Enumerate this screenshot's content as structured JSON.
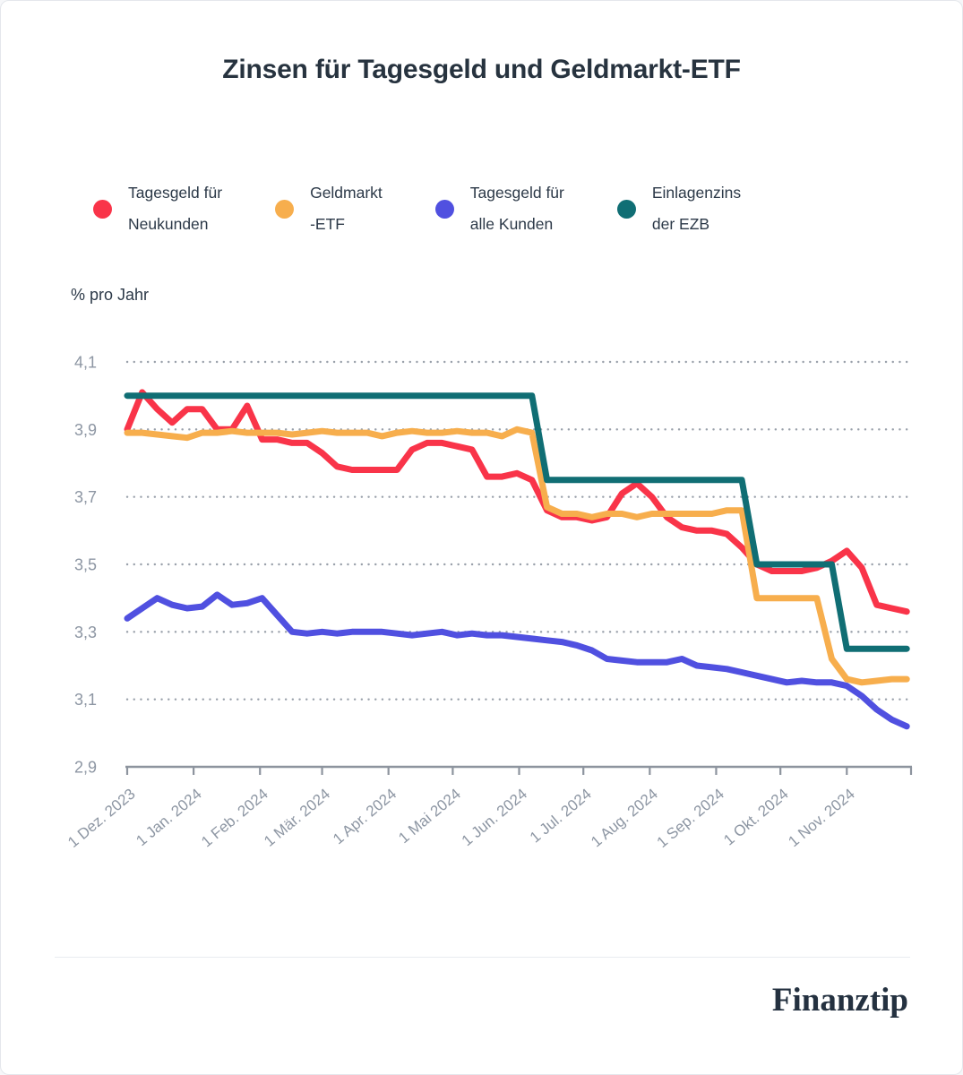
{
  "card": {
    "title": "Zinsen für Tagesgeld und Geldmarkt-ETF"
  },
  "y_axis_title": "% pro Jahr",
  "footer": {
    "brand": "Finanztip"
  },
  "colors": {
    "red": "#F93449",
    "orange": "#F7AE4D",
    "blue": "#5050E0",
    "teal": "#106E74",
    "title_text": "#27333F",
    "legend_text": "#2C3948",
    "axis_text": "#8D96A3",
    "grid_dots": "#99A0AA",
    "axis_line": "#8D949E",
    "separator": "#E9ECF0",
    "card_border": "#E4E7EC"
  },
  "legend": [
    {
      "id": "tagesgeld-neukunden",
      "line1": "Tagesgeld für",
      "line2": "Neukunden",
      "color": "#F93449"
    },
    {
      "id": "geldmarkt-etf",
      "line1": "Geldmarkt",
      "line2": "-ETF",
      "color": "#F7AE4D"
    },
    {
      "id": "tagesgeld-alle-kunden",
      "line1": "Tagesgeld für",
      "line2": "alle Kunden",
      "color": "#5050E0"
    },
    {
      "id": "einlagenzins-ezb",
      "line1": "Einlagenzins",
      "line2": "der EZB",
      "color": "#106E74"
    }
  ],
  "chart_data": {
    "type": "line",
    "title": "Zinsen für Tagesgeld und Geldmarkt-ETF",
    "ylabel": "% pro Jahr",
    "ylim": [
      2.9,
      4.1
    ],
    "grid": "horizontal-dotted",
    "legend_position": "top",
    "x_step_days": 7,
    "x_total_days": 366,
    "x_note": "weekly samples, day 0 = 1 Dez. 2023",
    "y_ticks": [
      {
        "label": "4,1",
        "value": 4.1
      },
      {
        "label": "3,9",
        "value": 3.9
      },
      {
        "label": "3,7",
        "value": 3.7
      },
      {
        "label": "3,5",
        "value": 3.5
      },
      {
        "label": "3,3",
        "value": 3.3
      },
      {
        "label": "3,1",
        "value": 3.1
      },
      {
        "label": "2,9",
        "value": 2.9
      }
    ],
    "x_ticks": [
      {
        "label": "1 Dez. 2023",
        "day": 0
      },
      {
        "label": "1 Jan. 2024",
        "day": 31
      },
      {
        "label": "1 Feb. 2024",
        "day": 62
      },
      {
        "label": "1 Mär. 2024",
        "day": 91
      },
      {
        "label": "1 Apr. 2024",
        "day": 122
      },
      {
        "label": "1 Mai 2024",
        "day": 152
      },
      {
        "label": "1 Jun. 2024",
        "day": 183
      },
      {
        "label": "1 Jul. 2024",
        "day": 213
      },
      {
        "label": "1 Aug. 2024",
        "day": 244
      },
      {
        "label": "1 Sep. 2024",
        "day": 275
      },
      {
        "label": "1 Okt. 2024",
        "day": 305
      },
      {
        "label": "1 Nov. 2024",
        "day": 336
      },
      {
        "label": "",
        "day": 366
      }
    ],
    "series": [
      {
        "id": "tagesgeld-neukunden",
        "name": "Tagesgeld für Neukunden",
        "color": "#F93449",
        "values": [
          3.9,
          4.01,
          3.96,
          3.92,
          3.96,
          3.96,
          3.9,
          3.9,
          3.97,
          3.87,
          3.87,
          3.86,
          3.86,
          3.83,
          3.79,
          3.78,
          3.78,
          3.78,
          3.78,
          3.84,
          3.86,
          3.86,
          3.85,
          3.84,
          3.76,
          3.76,
          3.77,
          3.75,
          3.66,
          3.64,
          3.64,
          3.63,
          3.64,
          3.71,
          3.74,
          3.7,
          3.64,
          3.61,
          3.6,
          3.6,
          3.59,
          3.55,
          3.5,
          3.48,
          3.48,
          3.48,
          3.49,
          3.51,
          3.54,
          3.49,
          3.38,
          3.37,
          3.36
        ]
      },
      {
        "id": "geldmarkt-etf",
        "name": "Geldmarkt-ETF",
        "color": "#F7AE4D",
        "values": [
          3.89,
          3.89,
          3.885,
          3.88,
          3.875,
          3.89,
          3.89,
          3.895,
          3.89,
          3.89,
          3.89,
          3.885,
          3.89,
          3.895,
          3.89,
          3.89,
          3.89,
          3.88,
          3.89,
          3.895,
          3.89,
          3.89,
          3.895,
          3.89,
          3.89,
          3.88,
          3.9,
          3.89,
          3.67,
          3.65,
          3.65,
          3.64,
          3.65,
          3.65,
          3.64,
          3.65,
          3.65,
          3.65,
          3.65,
          3.65,
          3.66,
          3.66,
          3.4,
          3.4,
          3.4,
          3.4,
          3.4,
          3.22,
          3.16,
          3.15,
          3.155,
          3.16,
          3.16
        ]
      },
      {
        "id": "tagesgeld-alle-kunden",
        "name": "Tagesgeld für alle Kunden",
        "color": "#5050E0",
        "values": [
          3.34,
          3.37,
          3.4,
          3.38,
          3.37,
          3.375,
          3.41,
          3.38,
          3.385,
          3.4,
          3.35,
          3.3,
          3.295,
          3.3,
          3.295,
          3.3,
          3.3,
          3.3,
          3.295,
          3.29,
          3.295,
          3.3,
          3.29,
          3.295,
          3.29,
          3.29,
          3.285,
          3.28,
          3.275,
          3.27,
          3.26,
          3.245,
          3.22,
          3.215,
          3.21,
          3.21,
          3.21,
          3.22,
          3.2,
          3.195,
          3.19,
          3.18,
          3.17,
          3.16,
          3.15,
          3.155,
          3.15,
          3.15,
          3.14,
          3.11,
          3.07,
          3.04,
          3.02
        ]
      },
      {
        "id": "einlagenzins-ezb",
        "name": "Einlagenzins der EZB",
        "color": "#106E74",
        "values": [
          4.0,
          4.0,
          4.0,
          4.0,
          4.0,
          4.0,
          4.0,
          4.0,
          4.0,
          4.0,
          4.0,
          4.0,
          4.0,
          4.0,
          4.0,
          4.0,
          4.0,
          4.0,
          4.0,
          4.0,
          4.0,
          4.0,
          4.0,
          4.0,
          4.0,
          4.0,
          4.0,
          4.0,
          3.75,
          3.75,
          3.75,
          3.75,
          3.75,
          3.75,
          3.75,
          3.75,
          3.75,
          3.75,
          3.75,
          3.75,
          3.75,
          3.75,
          3.5,
          3.5,
          3.5,
          3.5,
          3.5,
          3.5,
          3.25,
          3.25,
          3.25,
          3.25,
          3.25
        ]
      }
    ]
  }
}
